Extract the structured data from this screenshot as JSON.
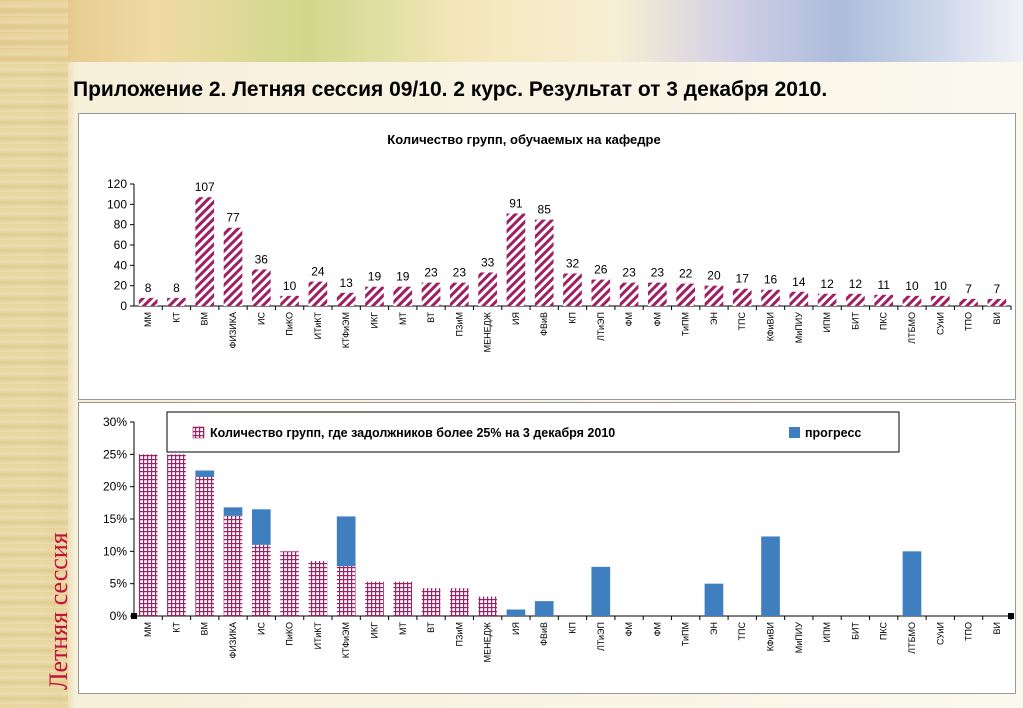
{
  "slide": {
    "title": "Приложение 2. Летняя сессия 09/10.   2 курс.  Результат от 3 декабря 2010.",
    "side_label": "Летняя сессия"
  },
  "colors": {
    "hatch_bar": "#9e1f63",
    "grid_bar": "#9e1f63",
    "progress_bar": "#3f7fbf",
    "side_label": "#c0143c"
  },
  "chart_data": [
    {
      "type": "bar",
      "title": "Количество групп, обучаемых на кафедре",
      "xlabel": "",
      "ylabel": "",
      "ylim": [
        0,
        120
      ],
      "yticks": [
        "0",
        "20",
        "40",
        "60",
        "80",
        "100",
        "120"
      ],
      "categories": [
        "ММ",
        "КТ",
        "ВМ",
        "ФИЗИКА",
        "ИС",
        "ПиКО",
        "ИТиКТ",
        "КТФиЭМ",
        "ИКГ",
        "МТ",
        "ВТ",
        "ПЗиМ",
        "МЕНЕДЖ",
        "ИЯ",
        "ФВиВ",
        "КП",
        "ЛТиЭП",
        "ФМ",
        "ФМ",
        "ТиПМ",
        "ЭН",
        "ТПС",
        "КФиВИ",
        "МиПИУ",
        "ИПМ",
        "БИТ",
        "ПКС",
        "ЛТБМО",
        "СУиИ",
        "ТПО",
        "ВИ"
      ],
      "values": [
        8,
        8,
        107,
        77,
        36,
        10,
        24,
        13,
        19,
        19,
        23,
        23,
        33,
        91,
        85,
        32,
        26,
        23,
        23,
        22,
        20,
        17,
        16,
        14,
        12,
        12,
        11,
        10,
        10,
        7,
        7
      ],
      "grid": false,
      "fill": "diagonal-hatch"
    },
    {
      "type": "bar",
      "stacked": true,
      "title": "",
      "xlabel": "",
      "ylabel": "",
      "ylim": [
        0,
        30
      ],
      "yticks": [
        "0%",
        "5%",
        "10%",
        "15%",
        "20%",
        "25%",
        "30%"
      ],
      "categories": [
        "ММ",
        "КТ",
        "ВМ",
        "ФИЗИКА",
        "ИС",
        "ПиКО",
        "ИТиКТ",
        "КТФиЭМ",
        "ИКГ",
        "МТ",
        "ВТ",
        "ПЗиМ",
        "МЕНЕДЖ",
        "ИЯ",
        "ФВиВ",
        "КП",
        "ЛТиЭП",
        "ФМ",
        "ФМ",
        "ТиПМ",
        "ЭН",
        "ТПС",
        "КФиВИ",
        "МиПИУ",
        "ИПМ",
        "БИТ",
        "ПКС",
        "ЛТБМО",
        "СУиИ",
        "ТПО",
        "ВИ"
      ],
      "legend_position": "top",
      "grid": false,
      "series": [
        {
          "name": "Количество групп, где задолжников более  25% на 3 декабря 2010",
          "fill": "grid-pattern",
          "values": [
            25,
            25,
            21.5,
            15.5,
            11,
            10,
            8.5,
            7.7,
            5.3,
            5.3,
            4.3,
            4.3,
            3,
            0,
            0,
            0,
            0,
            0,
            0,
            0,
            0,
            0,
            0,
            0,
            0,
            0,
            0,
            0,
            0,
            0,
            0
          ]
        },
        {
          "name": "прогресс",
          "fill": "solid",
          "values": [
            0,
            0,
            1,
            1.3,
            5.5,
            0,
            0,
            7.7,
            0,
            0,
            0,
            0,
            0,
            1,
            2.3,
            0,
            7.6,
            0,
            0,
            0,
            5,
            0,
            12.3,
            0,
            0,
            0,
            0,
            10,
            0,
            0,
            0
          ]
        }
      ]
    }
  ]
}
